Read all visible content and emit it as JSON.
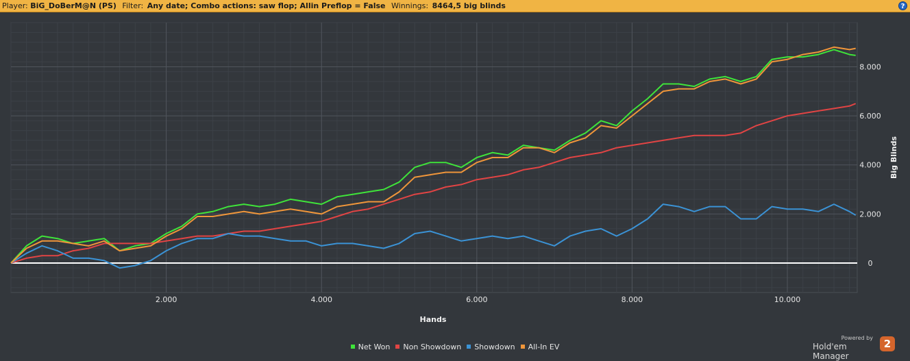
{
  "header": {
    "player_label": "Player:",
    "player_value": "BiG_DoBerM@N (PS)",
    "filter_label": "Filter:",
    "filter_value": "Any date; Combo actions: saw flop; Allin Preflop = False",
    "winnings_label": "Winnings:",
    "winnings_value": "8464,5 big blinds",
    "help_icon": "?"
  },
  "branding": {
    "powered_by": "Powered by",
    "product_name": "Hold'em Manager",
    "logo_number": "2"
  },
  "chart_data": {
    "type": "line",
    "xlabel": "Hands",
    "ylabel": "Big Blinds",
    "xlim": [
      0,
      10900
    ],
    "ylim": [
      -1200,
      9800
    ],
    "x_ticks": [
      2000,
      4000,
      6000,
      8000,
      10000
    ],
    "x_tick_labels": [
      "2.000",
      "4.000",
      "6.000",
      "8.000",
      "10.000"
    ],
    "y_ticks": [
      0,
      2000,
      4000,
      6000,
      8000
    ],
    "y_tick_labels": [
      "0",
      "2.000",
      "4.000",
      "6.000",
      "8.000"
    ],
    "grid": true,
    "legend_position": "bottom",
    "zero_line_color": "#ffffff",
    "x": [
      0,
      200,
      400,
      600,
      800,
      1000,
      1200,
      1400,
      1600,
      1800,
      2000,
      2200,
      2400,
      2600,
      2800,
      3000,
      3200,
      3400,
      3600,
      3800,
      4000,
      4200,
      4400,
      4600,
      4800,
      5000,
      5200,
      5400,
      5600,
      5800,
      6000,
      6200,
      6400,
      6600,
      6800,
      7000,
      7200,
      7400,
      7600,
      7800,
      8000,
      8200,
      8400,
      8600,
      8800,
      9000,
      9200,
      9400,
      9600,
      9800,
      10000,
      10200,
      10400,
      10600,
      10800,
      10880
    ],
    "series": [
      {
        "name": "Net Won",
        "color": "#3fe43a",
        "values": [
          0,
          700,
          1100,
          1000,
          800,
          900,
          1000,
          500,
          700,
          800,
          1200,
          1500,
          2000,
          2100,
          2300,
          2400,
          2300,
          2400,
          2600,
          2500,
          2400,
          2700,
          2800,
          2900,
          3000,
          3300,
          3900,
          4100,
          4100,
          3900,
          4300,
          4500,
          4400,
          4800,
          4700,
          4600,
          5000,
          5300,
          5800,
          5600,
          6200,
          6700,
          7300,
          7300,
          7200,
          7500,
          7600,
          7400,
          7600,
          8300,
          8400,
          8400,
          8500,
          8700,
          8500,
          8464
        ]
      },
      {
        "name": "Non Showdown",
        "color": "#e24444",
        "values": [
          0,
          200,
          300,
          300,
          500,
          600,
          800,
          800,
          800,
          800,
          900,
          1000,
          1100,
          1100,
          1200,
          1300,
          1300,
          1400,
          1500,
          1600,
          1700,
          1900,
          2100,
          2200,
          2400,
          2600,
          2800,
          2900,
          3100,
          3200,
          3400,
          3500,
          3600,
          3800,
          3900,
          4100,
          4300,
          4400,
          4500,
          4700,
          4800,
          4900,
          5000,
          5100,
          5200,
          5200,
          5200,
          5300,
          5600,
          5800,
          6000,
          6100,
          6200,
          6300,
          6400,
          6500
        ]
      },
      {
        "name": "Showdown",
        "color": "#3b93d6",
        "values": [
          0,
          400,
          700,
          500,
          200,
          200,
          100,
          -200,
          -100,
          100,
          500,
          800,
          1000,
          1000,
          1200,
          1100,
          1100,
          1000,
          900,
          900,
          700,
          800,
          800,
          700,
          600,
          800,
          1200,
          1300,
          1100,
          900,
          1000,
          1100,
          1000,
          1100,
          900,
          700,
          1100,
          1300,
          1400,
          1100,
          1400,
          1800,
          2400,
          2300,
          2100,
          2300,
          2300,
          1800,
          1800,
          2300,
          2200,
          2200,
          2100,
          2400,
          2100,
          1950
        ]
      },
      {
        "name": "All-In EV",
        "color": "#f0963a",
        "values": [
          0,
          600,
          900,
          900,
          800,
          700,
          900,
          500,
          600,
          700,
          1100,
          1400,
          1900,
          1900,
          2000,
          2100,
          2000,
          2100,
          2200,
          2100,
          2000,
          2300,
          2400,
          2500,
          2500,
          2900,
          3500,
          3600,
          3700,
          3700,
          4100,
          4300,
          4300,
          4700,
          4700,
          4500,
          4900,
          5100,
          5600,
          5500,
          6000,
          6500,
          7000,
          7100,
          7100,
          7400,
          7500,
          7300,
          7500,
          8200,
          8300,
          8500,
          8600,
          8800,
          8700,
          8750
        ]
      }
    ]
  }
}
